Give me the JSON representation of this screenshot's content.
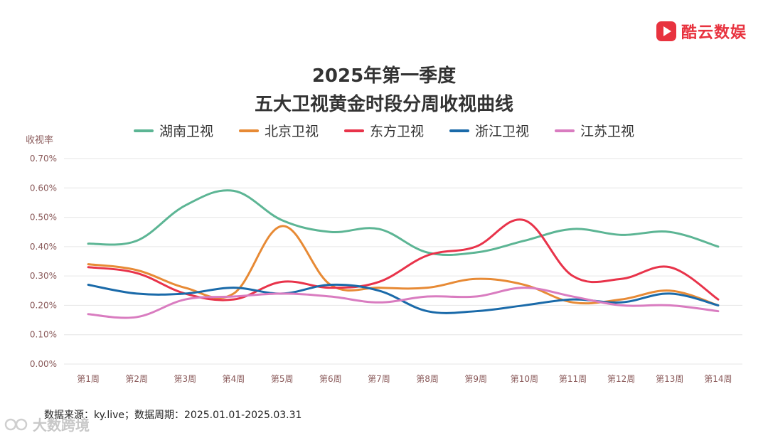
{
  "brand": {
    "name": "酷云数娱",
    "color": "#e8333f"
  },
  "source": "数据来源：ky.live；数据周期：2025.01.01-2025.03.31",
  "watermark": "大数跨境",
  "chart_data": {
    "type": "line",
    "title_lines": [
      "2025年第一季度",
      "五大卫视黄金时段分周收视曲线"
    ],
    "ylabel": "收视率",
    "xlabel": "",
    "ylim": [
      0,
      0.7
    ],
    "y_ticks": [
      0,
      0.1,
      0.2,
      0.3,
      0.4,
      0.5,
      0.6,
      0.7
    ],
    "y_tick_labels": [
      "0.00%",
      "0.10%",
      "0.20%",
      "0.30%",
      "0.40%",
      "0.50%",
      "0.60%",
      "0.70%"
    ],
    "grid": true,
    "legend_position": "top-center",
    "categories": [
      "第1周",
      "第2周",
      "第3周",
      "第4周",
      "第5周",
      "第6周",
      "第7周",
      "第8周",
      "第9周",
      "第10周",
      "第11周",
      "第12周",
      "第13周",
      "第14周"
    ],
    "series": [
      {
        "name": "湖南卫视",
        "color": "#5cb594",
        "values": [
          0.41,
          0.42,
          0.54,
          0.59,
          0.49,
          0.45,
          0.46,
          0.38,
          0.38,
          0.42,
          0.46,
          0.44,
          0.45,
          0.4
        ]
      },
      {
        "name": "北京卫视",
        "color": "#e78a35",
        "values": [
          0.34,
          0.32,
          0.26,
          0.24,
          0.47,
          0.27,
          0.26,
          0.26,
          0.29,
          0.27,
          0.21,
          0.22,
          0.25,
          0.2
        ]
      },
      {
        "name": "东方卫视",
        "color": "#e8334a",
        "values": [
          0.33,
          0.31,
          0.24,
          0.22,
          0.28,
          0.26,
          0.28,
          0.37,
          0.4,
          0.49,
          0.3,
          0.29,
          0.33,
          0.22
        ]
      },
      {
        "name": "浙江卫视",
        "color": "#1a6aa9",
        "values": [
          0.27,
          0.24,
          0.24,
          0.26,
          0.24,
          0.27,
          0.25,
          0.18,
          0.18,
          0.2,
          0.22,
          0.21,
          0.24,
          0.2
        ]
      },
      {
        "name": "江苏卫视",
        "color": "#d97cc0",
        "values": [
          0.17,
          0.16,
          0.22,
          0.23,
          0.24,
          0.23,
          0.21,
          0.23,
          0.23,
          0.26,
          0.23,
          0.2,
          0.2,
          0.18
        ]
      }
    ]
  }
}
